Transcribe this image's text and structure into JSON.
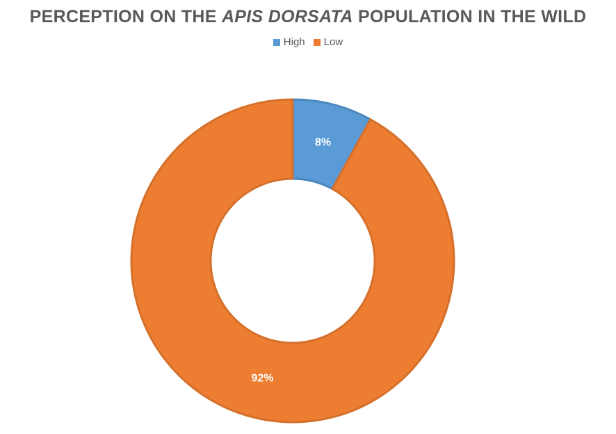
{
  "chart_data": {
    "type": "pie",
    "variant": "doughnut",
    "title_parts": [
      {
        "text": "PERCEPTION ON THE ",
        "italic": false
      },
      {
        "text": "APIS DORSATA",
        "italic": true
      },
      {
        "text": " POPULATION IN THE WILD",
        "italic": false
      }
    ],
    "legend_position": "top",
    "categories": [
      "High",
      "Low"
    ],
    "values": [
      8,
      92
    ],
    "labels": [
      "8%",
      "92%"
    ],
    "colors": [
      "#5b9bd5",
      "#ed7d31"
    ],
    "border_colors": [
      "#4a86bd",
      "#d4702b"
    ]
  }
}
